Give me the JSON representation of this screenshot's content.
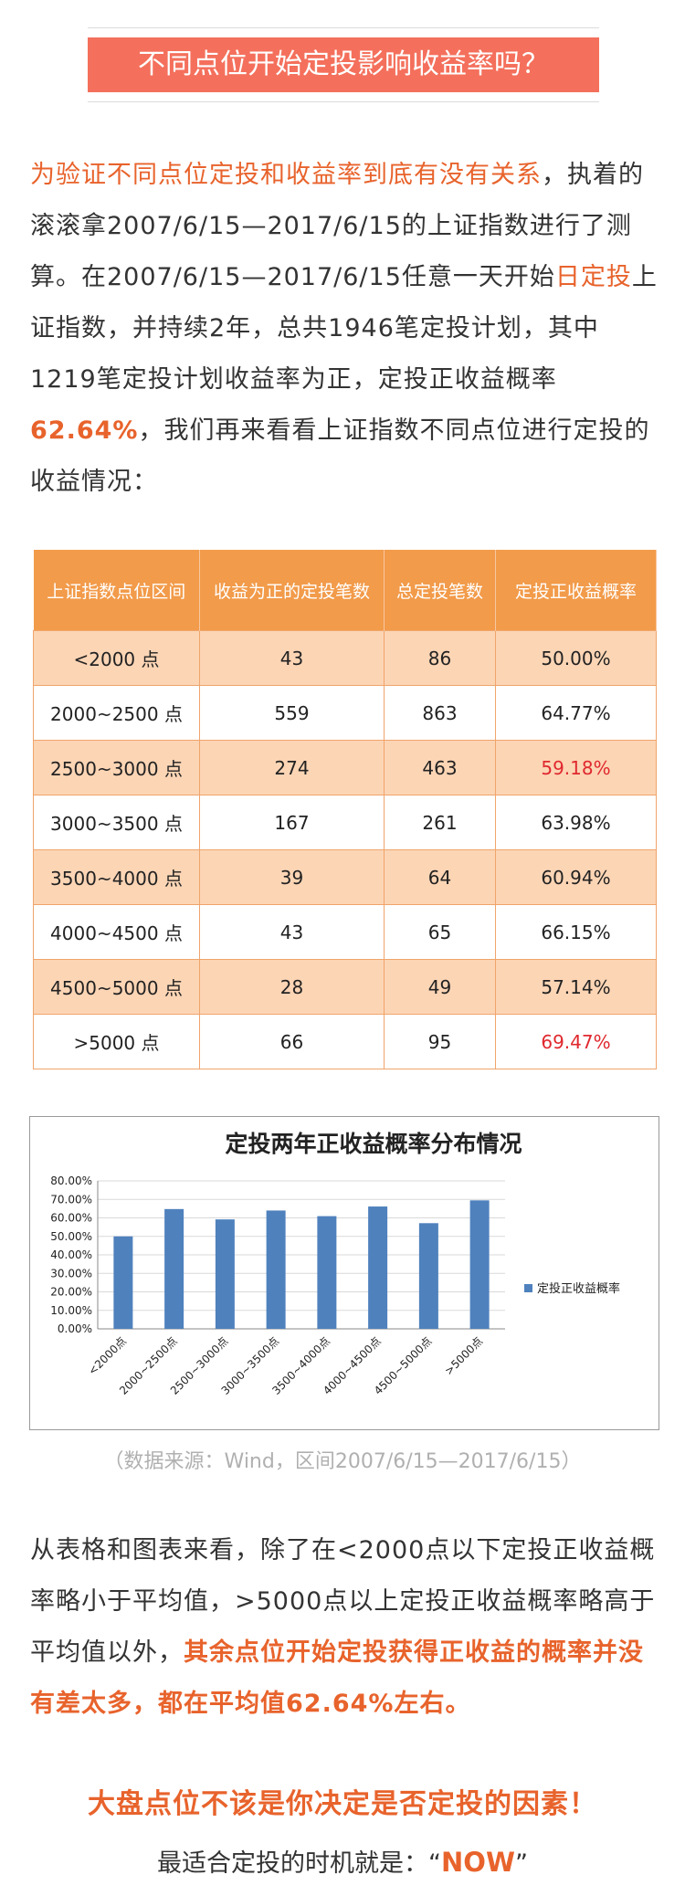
{
  "title": "不同点位开始定投影响收益率吗？",
  "intro": {
    "highlight1": "为验证不同点位定投和收益率到底有没有关系",
    "text1": "，执着的滚滚拿2007/6/15—2017/6/15的上证指数进行了测算。在2007/6/15—2017/6/15任意一天开始",
    "highlight2": "日定投",
    "text2": "上证指数，并持续2年，总共1946笔定投计划，其中1219笔定投计划收益率为正，定投正收益概率",
    "highlight3": "62.64%",
    "text3": "，我们再来看看上证指数不同点位进行定投的收益情况："
  },
  "table": {
    "headers": [
      "上证指数点位区间",
      "收益为正的定投笔数",
      "总定投笔数",
      "定投正收益概率"
    ],
    "rows": [
      [
        "<2000 点",
        "43",
        "86",
        "50.00%"
      ],
      [
        "2000~2500 点",
        "559",
        "863",
        "64.77%"
      ],
      [
        "2500~3000 点",
        "274",
        "463",
        "59.18%"
      ],
      [
        "3000~3500 点",
        "167",
        "261",
        "63.98%"
      ],
      [
        "3500~4000 点",
        "39",
        "64",
        "60.94%"
      ],
      [
        "4000~4500 点",
        "43",
        "65",
        "66.15%"
      ],
      [
        "4500~5000 点",
        "28",
        "49",
        "57.14%"
      ],
      [
        ">5000 点",
        "66",
        "95",
        "69.47%"
      ]
    ],
    "red_rows": [
      2,
      7
    ]
  },
  "chart_data": {
    "type": "bar",
    "title": "定投两年正收益概率分布情况",
    "categories": [
      "<2000点",
      "2000~2500点",
      "2500~3000点",
      "3000~3500点",
      "3500~4000点",
      "4000~4500点",
      "4500~5000点",
      ">5000点"
    ],
    "series": [
      {
        "name": "定投正收益概率",
        "values": [
          50.0,
          64.77,
          59.18,
          63.98,
          60.94,
          66.15,
          57.14,
          69.47
        ]
      }
    ],
    "y_ticks": [
      "80.00%",
      "70.00%",
      "60.00%",
      "50.00%",
      "40.00%",
      "30.00%",
      "20.00%",
      "10.00%",
      "0.00%"
    ],
    "ylim": [
      0,
      80
    ],
    "legend_position": "right",
    "bar_color": "#4f81bd",
    "grid": true
  },
  "source": "（数据来源：Wind，区间2007/6/15—2017/6/15）",
  "conclusion": {
    "text1": "从表格和图表来看，除了在<2000点以下定投正收益概率略小于平均值，>5000点以上定投正收益概率略高于平均值以外，",
    "highlight": "其余点位开始定投获得正收益的概率并没有差太多，都在平均值62.64%左右。"
  },
  "headline": "大盘点位不该是你决定是否定投的因素！",
  "closing": {
    "prefix": "最适合定投的时机就是：“",
    "now": "NOW",
    "suffix": "”"
  },
  "colors": {
    "accent": "#e8632c",
    "title_bg": "#f4705c",
    "table_header": "#f29b4a",
    "table_stripe": "#fcd5b5",
    "red": "#e0282e"
  }
}
